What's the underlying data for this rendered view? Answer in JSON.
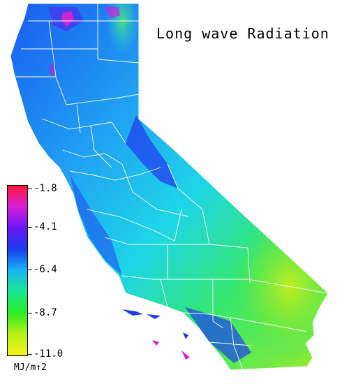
{
  "title": "Long wave Radiation",
  "legend": {
    "ticks": [
      "-1.8",
      "-4.1",
      "-6.4",
      "-8.7",
      "-11.0"
    ],
    "units": "MJ/m↑2",
    "colors": [
      "#ff1a3c",
      "#d71ed9",
      "#6a17f5",
      "#1a3cf0",
      "#18b6f5",
      "#18e890",
      "#2aee24",
      "#b9f018",
      "#f2f418"
    ]
  },
  "map_colors": {
    "water": "#ffffff",
    "high_elev": "#1c3cf0",
    "mid": "#25b9f0",
    "cyan": "#1ee0e8",
    "green": "#35e85a",
    "yellow_green": "#b8ee20",
    "peaks": "#e020c8",
    "county_lines": "#ffffff"
  }
}
